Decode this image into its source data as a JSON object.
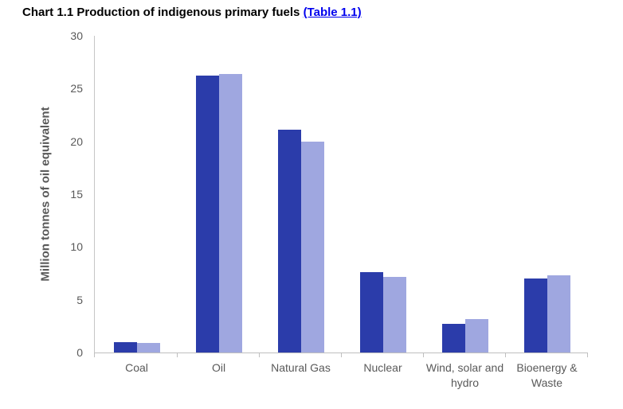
{
  "title": {
    "text": "Chart 1.1 Production of indigenous primary fuels",
    "link": "(Table 1.1)"
  },
  "style": {
    "link_blue": "#0000ee",
    "text_gray": "#595959",
    "axis_gray": "#bfbfbf"
  },
  "chart_data": {
    "type": "bar",
    "title": "Chart 1.1 Production of indigenous primary fuels (Table 1.1)",
    "categories": [
      "Coal",
      "Oil",
      "Natural Gas",
      "Nuclear",
      "Wind, solar and hydro",
      "Bioenergy & Waste"
    ],
    "series": [
      {
        "id": "series1",
        "color": "#2b3caa",
        "values": [
          1.0,
          26.2,
          21.1,
          7.6,
          2.7,
          7.0
        ]
      },
      {
        "id": "series2",
        "color": "#9fa7e0",
        "values": [
          0.9,
          26.4,
          20.0,
          7.2,
          3.2,
          7.3
        ]
      }
    ],
    "xlabel": "",
    "ylabel": "Million tonnes of oil equivalent",
    "yticks": [
      0,
      5,
      10,
      15,
      20,
      25,
      30
    ],
    "ylim": [
      0,
      30
    ],
    "grid": false,
    "legend": "none"
  }
}
